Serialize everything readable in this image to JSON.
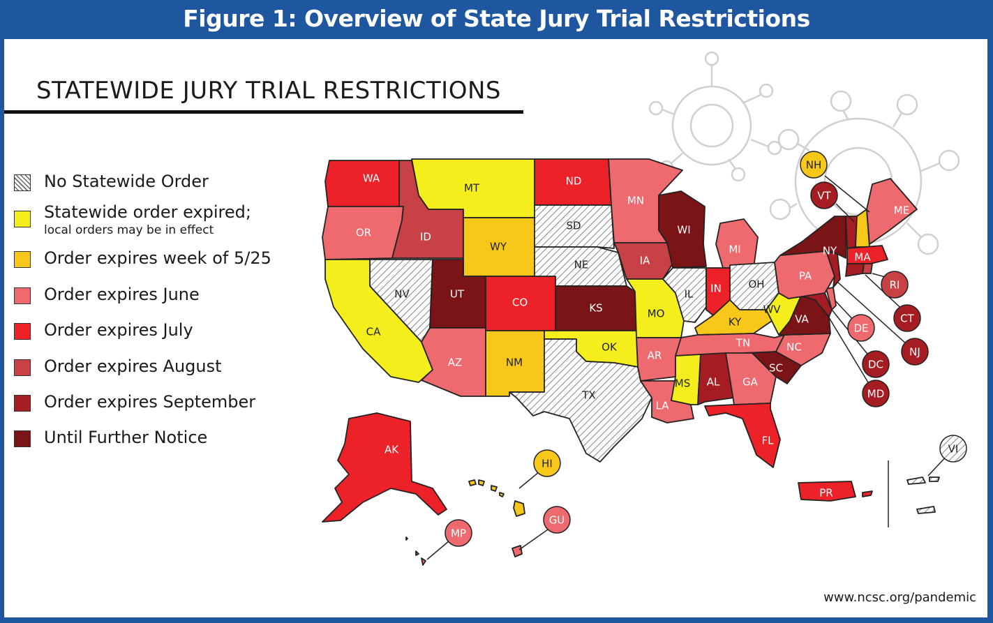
{
  "figure_title": "Figure 1: Overview of State Jury Trial Restrictions",
  "heading": "STATEWIDE JURY TRIAL RESTRICTIONS",
  "source": "www.ncsc.org/pandemic",
  "colors": {
    "frame": "#1f56a0",
    "none": "#ffffff",
    "expired": "#f3ee1c",
    "may25": "#f7c81a",
    "june": "#ee6a6f",
    "july": "#ed2128",
    "august": "#c84146",
    "september": "#a51d23",
    "further": "#7a1417"
  },
  "legend": [
    {
      "key": "none",
      "label": "No Statewide Order",
      "sub": ""
    },
    {
      "key": "expired",
      "label": "Statewide order expired;",
      "sub": "local orders may be in effect"
    },
    {
      "key": "may25",
      "label": "Order expires week of 5/25",
      "sub": ""
    },
    {
      "key": "june",
      "label": "Order expires  June",
      "sub": ""
    },
    {
      "key": "july",
      "label": "Order expires July",
      "sub": ""
    },
    {
      "key": "august",
      "label": "Order expires August",
      "sub": ""
    },
    {
      "key": "september",
      "label": "Order expires September",
      "sub": ""
    },
    {
      "key": "further",
      "label": "Until Further Notice",
      "sub": ""
    }
  ],
  "states": [
    {
      "id": "WA",
      "status": "july"
    },
    {
      "id": "OR",
      "status": "june"
    },
    {
      "id": "CA",
      "status": "expired"
    },
    {
      "id": "NV",
      "status": "none"
    },
    {
      "id": "ID",
      "status": "august"
    },
    {
      "id": "MT",
      "status": "expired"
    },
    {
      "id": "WY",
      "status": "may25"
    },
    {
      "id": "UT",
      "status": "further"
    },
    {
      "id": "AZ",
      "status": "june"
    },
    {
      "id": "CO",
      "status": "july"
    },
    {
      "id": "NM",
      "status": "may25"
    },
    {
      "id": "ND",
      "status": "july"
    },
    {
      "id": "SD",
      "status": "none"
    },
    {
      "id": "NE",
      "status": "none"
    },
    {
      "id": "KS",
      "status": "further"
    },
    {
      "id": "OK",
      "status": "expired"
    },
    {
      "id": "TX",
      "status": "none"
    },
    {
      "id": "MN",
      "status": "june"
    },
    {
      "id": "IA",
      "status": "august"
    },
    {
      "id": "MO",
      "status": "expired"
    },
    {
      "id": "AR",
      "status": "june"
    },
    {
      "id": "LA",
      "status": "june"
    },
    {
      "id": "WI",
      "status": "further"
    },
    {
      "id": "IL",
      "status": "none"
    },
    {
      "id": "MI",
      "status": "june"
    },
    {
      "id": "IN",
      "status": "july"
    },
    {
      "id": "OH",
      "status": "none"
    },
    {
      "id": "KY",
      "status": "may25"
    },
    {
      "id": "TN",
      "status": "june"
    },
    {
      "id": "MS",
      "status": "expired"
    },
    {
      "id": "AL",
      "status": "september"
    },
    {
      "id": "GA",
      "status": "june"
    },
    {
      "id": "FL",
      "status": "july"
    },
    {
      "id": "SC",
      "status": "further"
    },
    {
      "id": "NC",
      "status": "june"
    },
    {
      "id": "VA",
      "status": "further"
    },
    {
      "id": "WV",
      "status": "expired"
    },
    {
      "id": "PA",
      "status": "june"
    },
    {
      "id": "NY",
      "status": "further"
    },
    {
      "id": "VT",
      "status": "september"
    },
    {
      "id": "NH",
      "status": "may25"
    },
    {
      "id": "ME",
      "status": "june"
    },
    {
      "id": "MA",
      "status": "july"
    },
    {
      "id": "RI",
      "status": "august"
    },
    {
      "id": "CT",
      "status": "september"
    },
    {
      "id": "NJ",
      "status": "september"
    },
    {
      "id": "DE",
      "status": "june"
    },
    {
      "id": "MD",
      "status": "september"
    },
    {
      "id": "DC",
      "status": "september"
    },
    {
      "id": "AK",
      "status": "july"
    },
    {
      "id": "HI",
      "status": "may25"
    },
    {
      "id": "PR",
      "status": "july"
    },
    {
      "id": "GU",
      "status": "june"
    },
    {
      "id": "MP",
      "status": "june"
    },
    {
      "id": "VI",
      "status": "none"
    }
  ]
}
